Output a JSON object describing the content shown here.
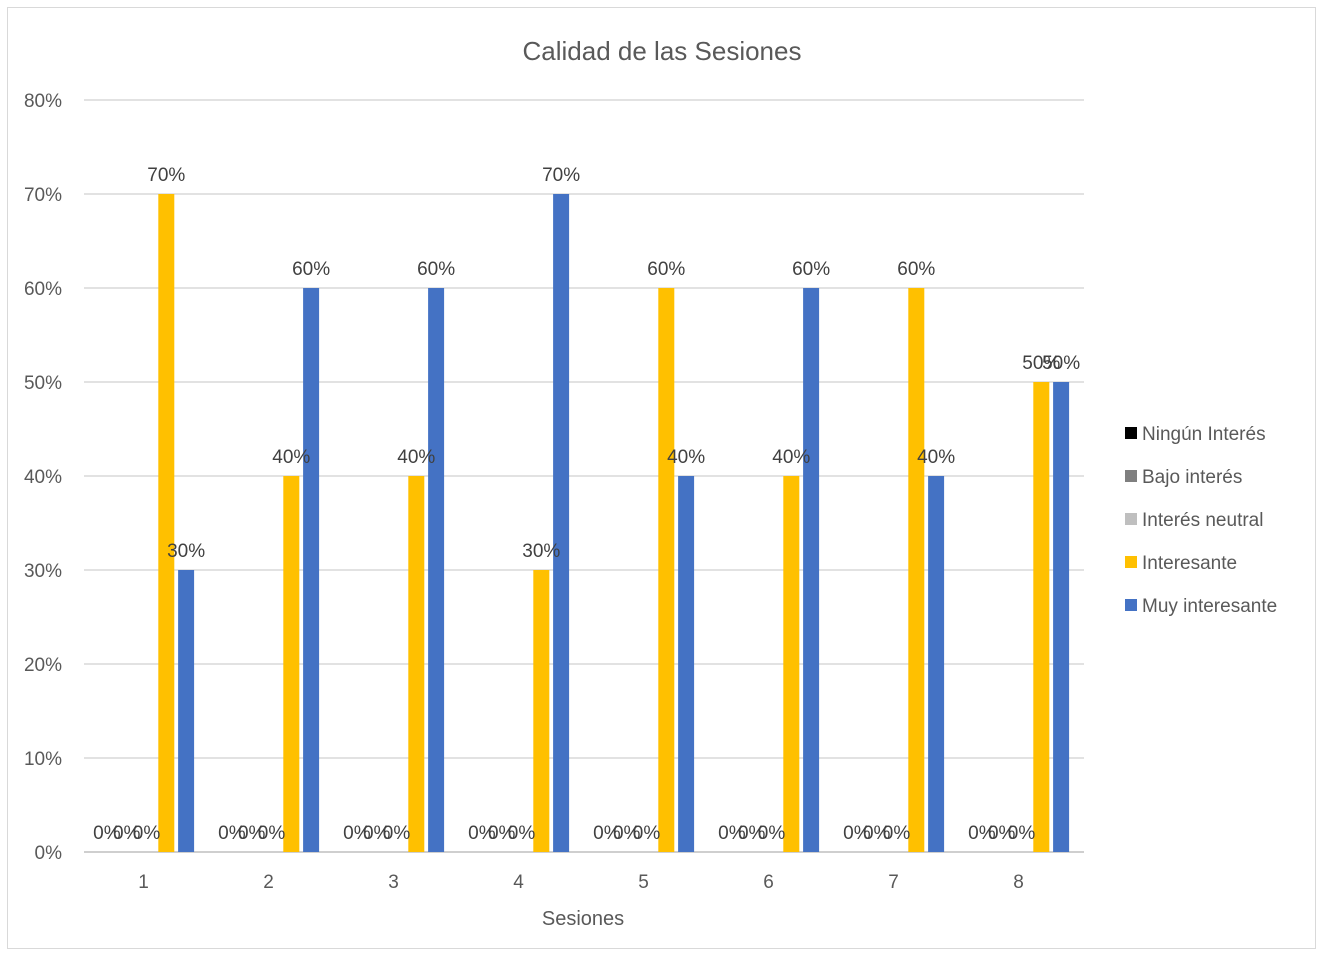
{
  "chart_data": {
    "type": "bar",
    "title": "Calidad de las Sesiones",
    "xlabel": "Sesiones",
    "ylabel": "",
    "ylim": [
      0,
      0.8
    ],
    "yticks": [
      "0%",
      "10%",
      "20%",
      "30%",
      "40%",
      "50%",
      "60%",
      "70%",
      "80%"
    ],
    "categories": [
      "1",
      "2",
      "3",
      "4",
      "5",
      "6",
      "7",
      "8"
    ],
    "grid": true,
    "legend_position": "right",
    "series": [
      {
        "name": "Ningún Interés",
        "color": "#000000",
        "values": [
          0,
          0,
          0,
          0,
          0,
          0,
          0,
          0
        ]
      },
      {
        "name": "Bajo interés",
        "color": "#7f7f7f",
        "values": [
          0,
          0,
          0,
          0,
          0,
          0,
          0,
          0
        ]
      },
      {
        "name": "Interés neutral",
        "color": "#bfbfbf",
        "values": [
          0,
          0,
          0,
          0,
          0,
          0,
          0,
          0
        ]
      },
      {
        "name": "Interesante",
        "color": "#ffc000",
        "values": [
          0.7,
          0.4,
          0.4,
          0.3,
          0.6,
          0.4,
          0.6,
          0.5
        ]
      },
      {
        "name": "Muy interesante",
        "color": "#4472c4",
        "values": [
          0.3,
          0.6,
          0.6,
          0.7,
          0.4,
          0.6,
          0.4,
          0.5
        ]
      }
    ]
  }
}
